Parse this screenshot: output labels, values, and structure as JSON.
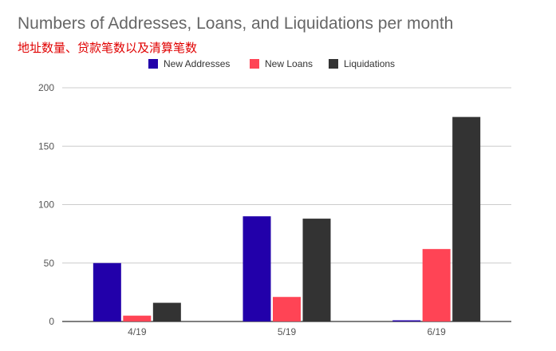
{
  "chart_data": {
    "type": "bar",
    "title": "Numbers of Addresses, Loans, and Liquidations per month",
    "subtitle": "地址数量、贷款笔数以及清算笔数",
    "xlabel": "",
    "ylabel": "",
    "categories": [
      "4/19",
      "5/19",
      "6/19"
    ],
    "series": [
      {
        "name": "New Addresses",
        "color": "#2200aa",
        "values": [
          50,
          90,
          1
        ]
      },
      {
        "name": "New Loans",
        "color": "#ff4455",
        "values": [
          5,
          21,
          62
        ]
      },
      {
        "name": "Liquidations",
        "color": "#333333",
        "values": [
          16,
          88,
          175
        ]
      }
    ],
    "ylim": [
      0,
      200
    ],
    "yticks": [
      0,
      50,
      100,
      150,
      200
    ],
    "grid": true,
    "legend_position": "top-center"
  }
}
